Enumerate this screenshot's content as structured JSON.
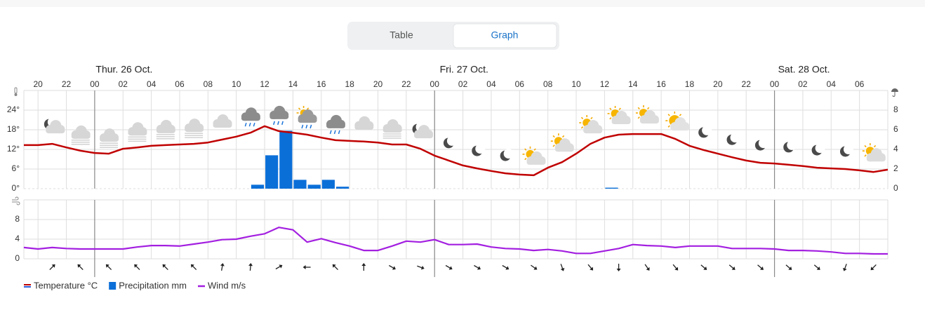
{
  "tabs": {
    "table": "Table",
    "graph": "Graph"
  },
  "chart_data": {
    "type": "meteogram",
    "days": [
      "Thur. 26 Oct.",
      "Fri. 27 Oct.",
      "Sat. 28 Oct."
    ],
    "day_starts": [
      24,
      48,
      72
    ],
    "xlim": [
      19,
      80
    ],
    "xticks": [
      20,
      22,
      {
        "value": 24,
        "label": "00"
      },
      {
        "value": 26,
        "label": "02"
      },
      {
        "value": 28,
        "label": "04"
      },
      {
        "value": 30,
        "label": "06"
      },
      {
        "value": 32,
        "label": "08"
      },
      {
        "value": 34,
        "label": "10"
      },
      {
        "value": 36,
        "label": "12"
      },
      {
        "value": 38,
        "label": "14"
      },
      {
        "value": 40,
        "label": "16"
      },
      {
        "value": 42,
        "label": "18"
      },
      {
        "value": 44,
        "label": "20"
      },
      {
        "value": 46,
        "label": "22"
      },
      {
        "value": 48,
        "label": "00"
      },
      {
        "value": 50,
        "label": "02"
      },
      {
        "value": 52,
        "label": "04"
      },
      {
        "value": 54,
        "label": "06"
      },
      {
        "value": 56,
        "label": "08"
      },
      {
        "value": 58,
        "label": "10"
      },
      {
        "value": 60,
        "label": "12"
      },
      {
        "value": 62,
        "label": "14"
      },
      {
        "value": 64,
        "label": "16"
      },
      {
        "value": 66,
        "label": "18"
      },
      {
        "value": 68,
        "label": "20"
      },
      {
        "value": 70,
        "label": "22"
      },
      {
        "value": 72,
        "label": "00"
      },
      {
        "value": 74,
        "label": "02"
      },
      {
        "value": 76,
        "label": "04"
      },
      {
        "value": 78,
        "label": "06"
      }
    ],
    "x": [
      19,
      20,
      21,
      22,
      23,
      24,
      25,
      26,
      27,
      28,
      29,
      30,
      31,
      32,
      33,
      34,
      35,
      36,
      37,
      38,
      39,
      40,
      41,
      42,
      43,
      44,
      45,
      46,
      47,
      48,
      49,
      50,
      51,
      52,
      53,
      54,
      55,
      56,
      57,
      58,
      59,
      60,
      61,
      62,
      63,
      64,
      65,
      66,
      67,
      68,
      69,
      70,
      71,
      72,
      73,
      74,
      75,
      76,
      77,
      78,
      79,
      80
    ],
    "temperature": {
      "name": "Temperature °C",
      "color": "#c00000",
      "values": [
        13.3,
        13.3,
        13.7,
        12.6,
        11.6,
        10.9,
        10.7,
        12.2,
        12.6,
        13.1,
        13.3,
        13.5,
        13.7,
        14.1,
        15.0,
        15.9,
        17.1,
        19.1,
        17.6,
        17.1,
        16.5,
        15.6,
        14.8,
        14.6,
        14.4,
        14.1,
        13.5,
        13.5,
        12.2,
        10.1,
        8.6,
        7.1,
        6.2,
        5.4,
        4.7,
        4.3,
        4.1,
        6.4,
        8.1,
        10.7,
        13.7,
        15.6,
        16.5,
        16.7,
        16.7,
        16.7,
        15.2,
        13.1,
        11.8,
        10.7,
        9.6,
        8.6,
        7.9,
        7.7,
        7.3,
        6.9,
        6.4,
        6.2,
        6.0,
        5.6,
        5.1,
        5.8
      ]
    },
    "ylim": [
      0,
      30
    ],
    "yticks": [
      {
        "value": 0,
        "label": "0°"
      },
      {
        "value": 6,
        "label": "6°"
      },
      {
        "value": 12,
        "label": "12°"
      },
      {
        "value": 18,
        "label": "18°"
      },
      {
        "value": 24,
        "label": "24°"
      }
    ],
    "precipitation": {
      "name": "Precipitation mm",
      "color": "#0b6fd8",
      "axis": "y2",
      "x": [
        35,
        36,
        37,
        38,
        39,
        40,
        41,
        60
      ],
      "values": [
        0.4,
        3.4,
        5.9,
        0.9,
        0.4,
        0.9,
        0.2,
        0.1
      ]
    },
    "y2lim": [
      0,
      10
    ],
    "y2ticks": [
      0,
      2,
      4,
      6,
      8
    ],
    "wind": {
      "name": "Wind m/s",
      "color": "#a31fe0",
      "values": [
        2.3,
        2.0,
        2.3,
        2.1,
        2.0,
        2.0,
        2.0,
        2.0,
        2.4,
        2.7,
        2.7,
        2.6,
        3.0,
        3.4,
        3.9,
        4.0,
        4.6,
        5.1,
        6.4,
        5.9,
        3.4,
        4.1,
        3.3,
        2.6,
        1.7,
        1.7,
        2.6,
        3.6,
        3.4,
        3.9,
        2.9,
        2.9,
        3.0,
        2.4,
        2.1,
        2.0,
        1.7,
        1.9,
        1.6,
        1.1,
        1.1,
        1.6,
        2.1,
        2.9,
        2.7,
        2.6,
        2.3,
        2.6,
        2.6,
        2.6,
        2.1,
        2.1,
        2.1,
        2.0,
        1.7,
        1.7,
        1.6,
        1.4,
        1.1,
        1.1,
        1.0,
        1.0
      ],
      "ylim": [
        0,
        12
      ],
      "yticks": [
        0,
        4,
        8
      ]
    },
    "wind_direction": {
      "x": [
        21,
        23,
        25,
        27,
        29,
        31,
        33,
        35,
        37,
        39,
        41,
        43,
        45,
        47,
        49,
        51,
        53,
        55,
        57,
        59,
        61,
        63,
        65,
        67,
        69,
        71,
        73,
        75,
        77,
        79
      ],
      "values": [
        45,
        315,
        315,
        315,
        315,
        315,
        10,
        5,
        60,
        270,
        315,
        0,
        120,
        110,
        120,
        120,
        120,
        125,
        160,
        140,
        180,
        145,
        140,
        130,
        130,
        130,
        130,
        130,
        200,
        225
      ]
    }
  }
}
